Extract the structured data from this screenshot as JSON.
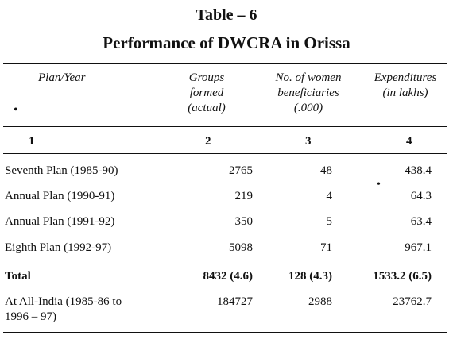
{
  "table_number": "Table – 6",
  "title": "Performance of DWCRA in Orissa",
  "headers": {
    "plan_year": "Plan/Year",
    "groups": [
      "Groups",
      "formed",
      "(actual)"
    ],
    "women": [
      "No. of women",
      "beneficiaries",
      "(.000)"
    ],
    "expenditures": [
      "Expenditures",
      "(in lakhs)"
    ]
  },
  "column_numbers": [
    "1",
    "2",
    "3",
    "4"
  ],
  "rows": [
    {
      "plan": "Seventh Plan (1985-90)",
      "groups": "2765",
      "women": "48",
      "exp": "438.4"
    },
    {
      "plan": "Annual Plan (1990-91)",
      "groups": "219",
      "women": "4",
      "exp": "64.3"
    },
    {
      "plan": "Annual Plan (1991-92)",
      "groups": "350",
      "women": "5",
      "exp": "63.4"
    },
    {
      "plan": "Eighth Plan (1992-97)",
      "groups": "5098",
      "women": "71",
      "exp": "967.1"
    }
  ],
  "total": {
    "plan": "Total",
    "groups": "8432 (4.6)",
    "women": "128 (4.3)",
    "exp": "1533.2 (6.5)"
  },
  "all_india": {
    "plan_line1": "At All-India (1985-86 to",
    "plan_line2": "1996 – 97)",
    "groups": "184727",
    "women": "2988",
    "exp": "23762.7"
  }
}
